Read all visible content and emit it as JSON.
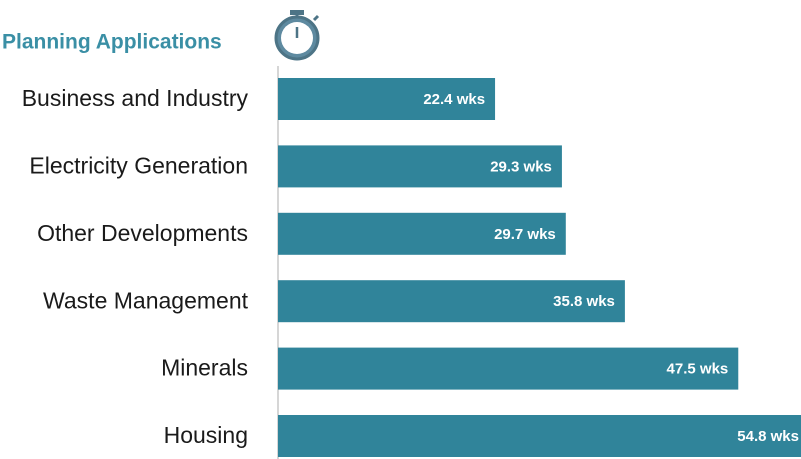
{
  "chart_data": {
    "type": "bar",
    "orientation": "horizontal",
    "title": "Planning Applications",
    "categories": [
      "Business and Industry",
      "Electricity Generation",
      "Other Developments",
      "Waste Management",
      "Minerals",
      "Housing"
    ],
    "values": [
      22.4,
      29.3,
      29.7,
      35.8,
      47.5,
      54.8
    ],
    "value_labels": [
      "22.4 wks",
      "29.3 wks",
      "29.7 wks",
      "35.8 wks",
      "47.5 wks",
      "54.8 wks"
    ],
    "color": "#30849a"
  }
}
